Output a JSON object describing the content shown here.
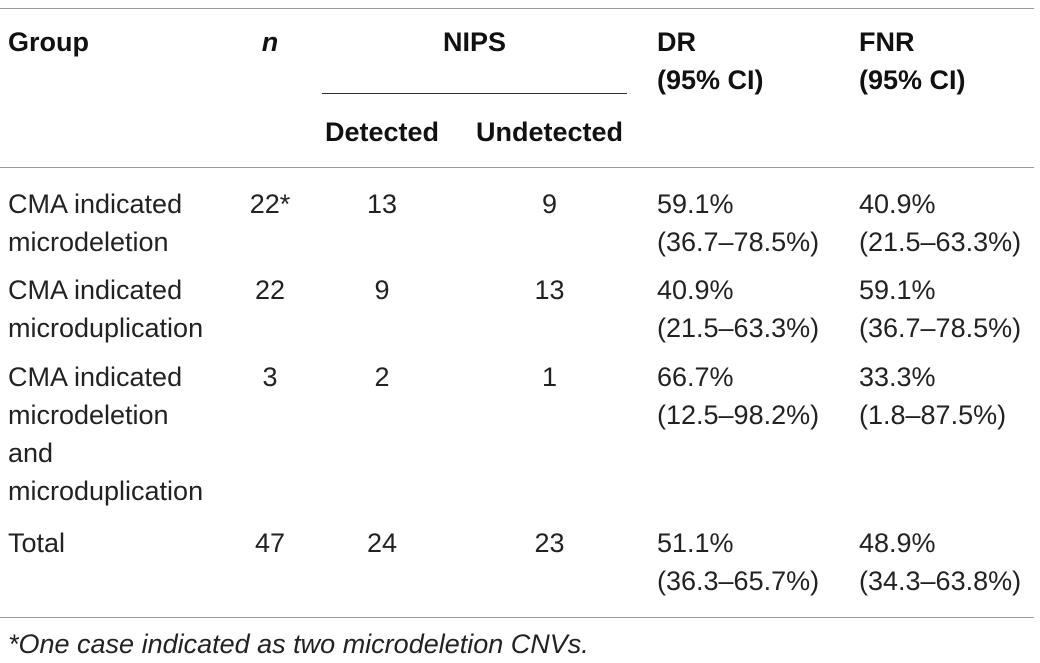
{
  "table": {
    "headers": {
      "group": "Group",
      "n": "n",
      "nips": "NIPS",
      "detected": "Detected",
      "undetected": "Undetected",
      "dr": [
        "DR",
        "(95% CI)"
      ],
      "fnr": [
        "FNR",
        "(95% CI)"
      ]
    },
    "rows": [
      {
        "group": [
          "CMA indicated",
          "microdeletion"
        ],
        "n": "22*",
        "detected": "13",
        "undetected": "9",
        "dr": [
          "59.1%",
          "(36.7–78.5%)"
        ],
        "fnr": [
          "40.9%",
          "(21.5–63.3%)"
        ]
      },
      {
        "group": [
          "CMA indicated",
          "microduplication"
        ],
        "n": "22",
        "detected": "9",
        "undetected": "13",
        "dr": [
          "40.9%",
          "(21.5–63.3%)"
        ],
        "fnr": [
          "59.1%",
          "(36.7–78.5%)"
        ]
      },
      {
        "group": [
          "CMA indicated",
          "microdeletion",
          "and",
          "microduplication"
        ],
        "n": "3",
        "detected": "2",
        "undetected": "1",
        "dr": [
          "66.7%",
          "(12.5–98.2%)"
        ],
        "fnr": [
          "33.3%",
          "(1.8–87.5%)"
        ]
      },
      {
        "group": [
          "Total"
        ],
        "n": "47",
        "detected": "24",
        "undetected": "23",
        "dr": [
          "51.1%",
          "(36.3–65.7%)"
        ],
        "fnr": [
          "48.9%",
          "(34.3–63.8%)"
        ]
      }
    ],
    "footnote": "*One case indicated as two microdeletion CNVs."
  }
}
